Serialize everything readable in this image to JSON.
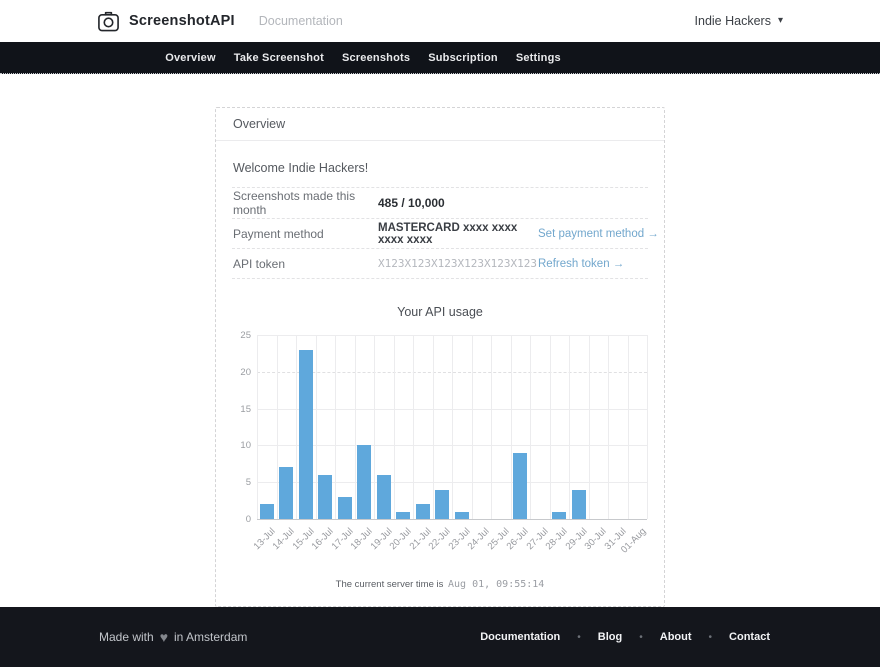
{
  "header": {
    "logo": "ScreenshotAPI",
    "logo_icon": "camera-icon",
    "nav_link": "Documentation",
    "account": "Indie Hackers",
    "caret_icon": "chevron-down-icon"
  },
  "nav": {
    "items": [
      "Overview",
      "Take Screenshot",
      "Screenshots",
      "Subscription",
      "Settings"
    ]
  },
  "card": {
    "title": "Overview",
    "welcome": "Welcome Indie Hackers!",
    "rows": [
      {
        "label": "Screenshots made this month",
        "value": "485 / 10,000",
        "value_style": "bold",
        "link": ""
      },
      {
        "label": "Payment method",
        "value": "MASTERCARD xxxx xxxx xxxx xxxx",
        "value_style": "medium",
        "link": "Set payment method →"
      },
      {
        "label": "API token",
        "value": "X123X123X123X123X123X123",
        "value_style": "muted-mono",
        "link": "Refresh token →"
      }
    ]
  },
  "chart_data": {
    "type": "bar",
    "title": "Your API usage",
    "categories": [
      "13-Jul",
      "14-Jul",
      "15-Jul",
      "16-Jul",
      "17-Jul",
      "18-Jul",
      "19-Jul",
      "20-Jul",
      "21-Jul",
      "22-Jul",
      "23-Jul",
      "24-Jul",
      "25-Jul",
      "26-Jul",
      "27-Jul",
      "28-Jul",
      "29-Jul",
      "30-Jul",
      "31-Jul",
      "01-Aug"
    ],
    "values": [
      2,
      7,
      23,
      6,
      3,
      10,
      6,
      1,
      2,
      4,
      1,
      0,
      0,
      9,
      0,
      1,
      4,
      0,
      0,
      0
    ],
    "xlabel": "",
    "ylabel": "",
    "ylim": [
      0,
      25
    ],
    "yticks": [
      0,
      5,
      10,
      15,
      20,
      25
    ],
    "bar_color": "#5fa8dc",
    "grid": true,
    "legend": false
  },
  "server_time": {
    "prefix": "The current server time is",
    "time": "Aug 01, 09:55:14"
  },
  "footer": {
    "made_with": "Made with",
    "heart_icon": "heart-icon",
    "location": "in Amsterdam",
    "separator": "•",
    "links": [
      "Documentation",
      "Blog",
      "About",
      "Contact"
    ]
  },
  "colors": {
    "accent_blue": "#5fa8dc",
    "link_blue": "#72a7cd",
    "nav_bg": "#101319",
    "footer_bg": "#14161c"
  }
}
